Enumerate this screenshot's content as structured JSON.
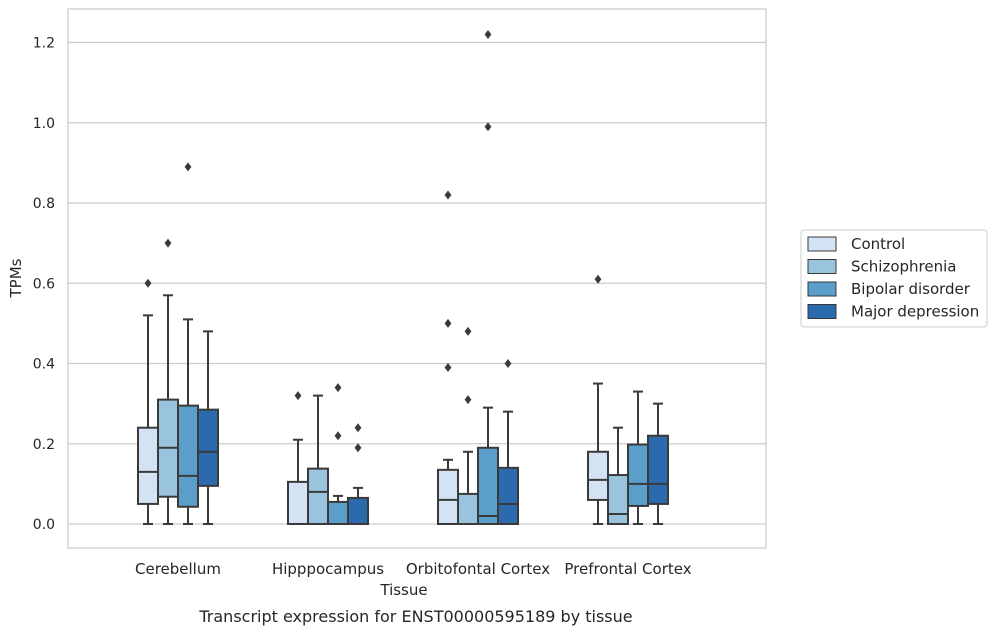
{
  "chart_data": {
    "type": "box",
    "caption": "Transcript expression for ENST00000595189 by tissue",
    "xlabel": "Tissue",
    "ylabel": "TPMs",
    "ylim": [
      -0.06,
      1.28
    ],
    "yticks": [
      "0.0",
      "0.2",
      "0.4",
      "0.6",
      "0.8",
      "1.0",
      "1.2"
    ],
    "ytick_values": [
      0.0,
      0.2,
      0.4,
      0.6,
      0.8,
      1.0,
      1.2
    ],
    "grid": "horizontal",
    "legend_position": "right",
    "categories": [
      "Cerebellum",
      "Hipppocampus",
      "Orbitofontal Cortex",
      "Prefrontal Cortex"
    ],
    "series": [
      {
        "name": "Control",
        "color": "#d4e3f3",
        "boxes": [
          {
            "min": 0.0,
            "q1": 0.05,
            "median": 0.13,
            "q3": 0.24,
            "max": 0.52,
            "outliers": [
              0.6
            ]
          },
          {
            "min": 0.0,
            "q1": 0.0,
            "median": 0.0,
            "q3": 0.105,
            "max": 0.21,
            "outliers": [
              0.32
            ]
          },
          {
            "min": 0.0,
            "q1": 0.0,
            "median": 0.06,
            "q3": 0.135,
            "max": 0.16,
            "outliers": [
              0.39,
              0.5,
              0.82
            ]
          },
          {
            "min": 0.0,
            "q1": 0.06,
            "median": 0.11,
            "q3": 0.18,
            "max": 0.35,
            "outliers": [
              0.61
            ]
          }
        ]
      },
      {
        "name": "Schizophrenia",
        "color": "#9ac4de",
        "boxes": [
          {
            "min": 0.0,
            "q1": 0.068,
            "median": 0.19,
            "q3": 0.31,
            "max": 0.57,
            "outliers": [
              0.7
            ]
          },
          {
            "min": 0.0,
            "q1": 0.0,
            "median": 0.08,
            "q3": 0.138,
            "max": 0.32,
            "outliers": []
          },
          {
            "min": 0.0,
            "q1": 0.0,
            "median": 0.0,
            "q3": 0.075,
            "max": 0.18,
            "outliers": [
              0.31,
              0.48
            ]
          },
          {
            "min": 0.0,
            "q1": 0.0,
            "median": 0.025,
            "q3": 0.122,
            "max": 0.24,
            "outliers": []
          }
        ]
      },
      {
        "name": "Bipolar disorder",
        "color": "#5a9ec9",
        "boxes": [
          {
            "min": 0.0,
            "q1": 0.043,
            "median": 0.12,
            "q3": 0.295,
            "max": 0.51,
            "outliers": [
              0.89
            ]
          },
          {
            "min": 0.0,
            "q1": 0.0,
            "median": 0.0,
            "q3": 0.055,
            "max": 0.07,
            "outliers": [
              0.22,
              0.34
            ]
          },
          {
            "min": 0.0,
            "q1": 0.0,
            "median": 0.02,
            "q3": 0.19,
            "max": 0.29,
            "outliers": [
              0.99,
              1.22
            ]
          },
          {
            "min": 0.0,
            "q1": 0.045,
            "median": 0.1,
            "q3": 0.198,
            "max": 0.33,
            "outliers": []
          }
        ]
      },
      {
        "name": "Major depression",
        "color": "#2a6aad",
        "boxes": [
          {
            "min": 0.0,
            "q1": 0.095,
            "median": 0.18,
            "q3": 0.285,
            "max": 0.48,
            "outliers": []
          },
          {
            "min": 0.0,
            "q1": 0.0,
            "median": 0.0,
            "q3": 0.065,
            "max": 0.09,
            "outliers": [
              0.19,
              0.24
            ]
          },
          {
            "min": 0.0,
            "q1": 0.0,
            "median": 0.05,
            "q3": 0.14,
            "max": 0.28,
            "outliers": [
              0.4
            ]
          },
          {
            "min": 0.0,
            "q1": 0.05,
            "median": 0.1,
            "q3": 0.22,
            "max": 0.3,
            "outliers": []
          }
        ]
      }
    ]
  }
}
